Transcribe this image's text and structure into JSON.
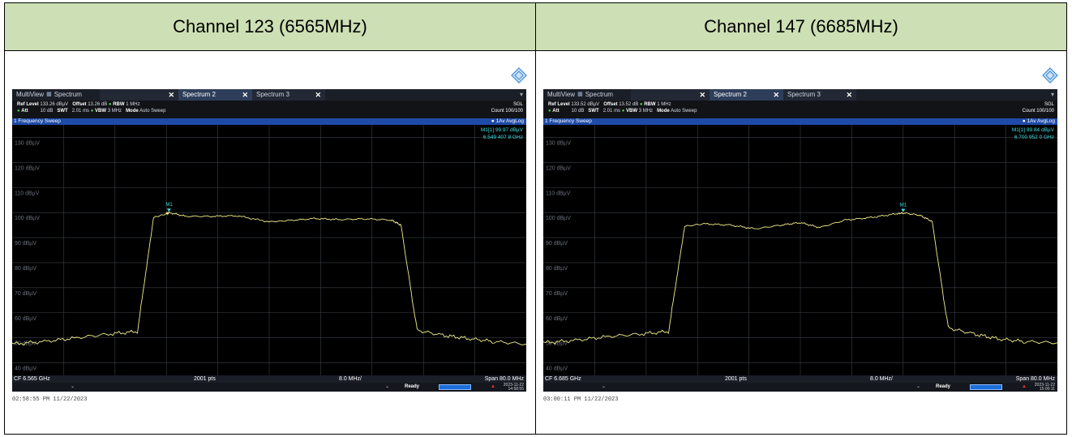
{
  "panels": [
    {
      "heading": "Channel 123 (6565MHz)",
      "tabs": {
        "multiview": "MultiView",
        "spectrum1": "Spectrum",
        "spectrum2": "Spectrum 2",
        "spectrum3": "Spectrum 3"
      },
      "settings": {
        "ref_level_label": "Ref Level",
        "ref_level": "133.26 dBµV",
        "offset_label": "Offset",
        "offset": "13.26 dB",
        "rbw_label": "RBW",
        "rbw": "1 MHz",
        "att_label": "Att",
        "att": "10 dB",
        "swt_label": "SWT",
        "swt": "2.01 ms",
        "vbw_label": "VBW",
        "vbw": "3 MHz",
        "mode_label": "Mode",
        "mode": "Auto Sweep",
        "sgl": "SGL",
        "count": "Count 100/100"
      },
      "sweep_title": "1 Frequency Sweep",
      "trace_label": "1Av AvgLog",
      "marker": {
        "name": "M1[1]",
        "level": "99.97 dBµV",
        "freq": "6.549 407 8 GHz",
        "tag": "M1"
      },
      "y_ticks": [
        "130 dBµV",
        "120 dBµV",
        "110 dBµV",
        "100 dBµV",
        "90 dBµV",
        "80 dBµV",
        "70 dBµV",
        "60 dBµV",
        "50 dBµV",
        "40 dBµV"
      ],
      "footer": {
        "cf": "CF 6.565 GHz",
        "pts": "2001 pts",
        "div": "8.0 MHz/",
        "span": "Span 80.0 MHz"
      },
      "status": {
        "ready": "Ready",
        "date": "2023-11-22",
        "time": "14:58:55"
      },
      "timestamp": "02:58:55 PM  11/22/2023",
      "chart_data": {
        "type": "line",
        "xlabel": "",
        "ylabel": "",
        "x": [
          6.525,
          6.53,
          6.535,
          6.54,
          6.5445,
          6.547,
          6.549,
          6.5494,
          6.552,
          6.556,
          6.56,
          6.565,
          6.568,
          6.572,
          6.576,
          6.58,
          6.584,
          6.5855,
          6.588,
          6.592,
          6.596,
          6.6,
          6.605
        ],
        "y": [
          47.5,
          48.5,
          50,
          51.5,
          52.5,
          98,
          99.5,
          99.97,
          98.5,
          98.5,
          98.7,
          96.3,
          96.8,
          97.6,
          97.2,
          97.5,
          97,
          95,
          53,
          51,
          49.7,
          48.5,
          47.5
        ],
        "xlim": [
          6.525,
          6.605
        ],
        "ylim": [
          35,
          135
        ]
      }
    },
    {
      "heading": "Channel 147 (6685MHz)",
      "tabs": {
        "multiview": "MultiView",
        "spectrum1": "Spectrum",
        "spectrum2": "Spectrum 2",
        "spectrum3": "Spectrum 3"
      },
      "settings": {
        "ref_level_label": "Ref Level",
        "ref_level": "133.52 dBµV",
        "offset_label": "Offset",
        "offset": "13.52 dB",
        "rbw_label": "RBW",
        "rbw": "1 MHz",
        "att_label": "Att",
        "att": "10 dB",
        "swt_label": "SWT",
        "swt": "2.01 ms",
        "vbw_label": "VBW",
        "vbw": "3 MHz",
        "mode_label": "Mode",
        "mode": "Auto Sweep",
        "sgl": "SGL",
        "count": "Count 100/100"
      },
      "sweep_title": "1 Frequency Sweep",
      "trace_label": "1Av AvgLog",
      "marker": {
        "name": "M1[1]",
        "level": "99.84 dBµV",
        "freq": "6.700 952 0 GHz",
        "tag": "M1"
      },
      "y_ticks": [
        "130 dBµV",
        "120 dBµV",
        "110 dBµV",
        "100 dBµV",
        "90 dBµV",
        "80 dBµV",
        "70 dBµV",
        "60 dBµV",
        "50 dBµV",
        "40 dBµV"
      ],
      "footer": {
        "cf": "CF 6.685 GHz",
        "pts": "2001 pts",
        "div": "8.0 MHz/",
        "span": "Span 80.0 MHz"
      },
      "status": {
        "ready": "Ready",
        "date": "2023-11-22",
        "time": "15:00:11"
      },
      "timestamp": "03:00:11 PM  11/22/2023",
      "chart_data": {
        "type": "line",
        "xlabel": "",
        "ylabel": "",
        "x": [
          6.645,
          6.65,
          6.655,
          6.66,
          6.6645,
          6.667,
          6.67,
          6.674,
          6.678,
          6.682,
          6.685,
          6.688,
          6.692,
          6.696,
          6.7,
          6.701,
          6.7035,
          6.7055,
          6.708,
          6.712,
          6.716,
          6.72,
          6.725
        ],
        "y": [
          48,
          49,
          50.5,
          51.5,
          52.5,
          94.5,
          95.5,
          95,
          93.5,
          95,
          96,
          94,
          97,
          98,
          99.5,
          99.84,
          99,
          96.5,
          54,
          51.5,
          49.5,
          48.5,
          48
        ],
        "xlim": [
          6.645,
          6.725
        ],
        "ylim": [
          35,
          135
        ]
      }
    }
  ]
}
